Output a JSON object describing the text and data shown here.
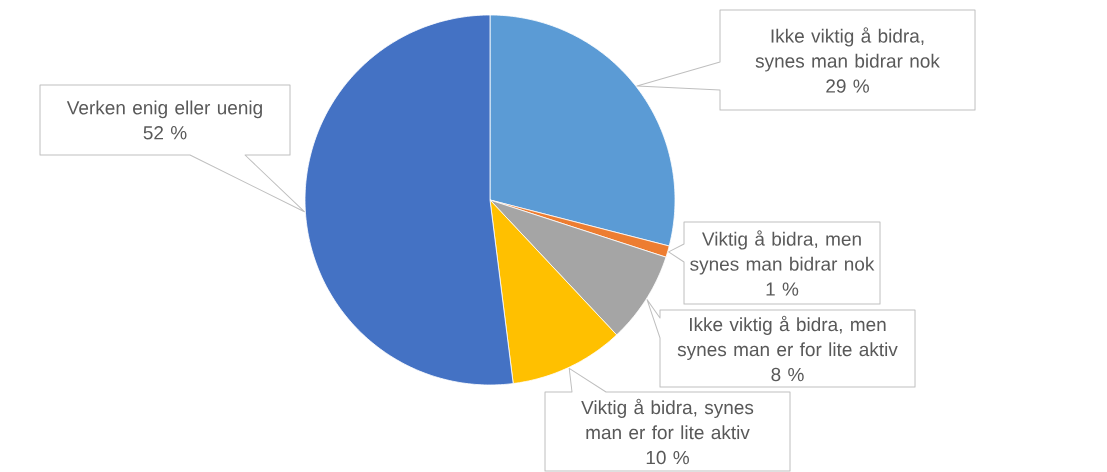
{
  "chart_data": {
    "type": "pie",
    "categories": [
      "Ikke viktig å bidra, synes man bidrar nok",
      "Viktig å bidra, men synes man bidrar nok",
      "Ikke viktig å bidra, men synes man er for lite aktiv",
      "Viktig å bidra, synes man er for lite aktiv",
      "Verken enig eller uenig"
    ],
    "values": [
      29,
      1,
      8,
      10,
      52
    ],
    "colors": [
      "#5b9bd5",
      "#ed7d31",
      "#a5a5a5",
      "#ffc000",
      "#4472c4"
    ],
    "value_labels": [
      "29 %",
      "1 %",
      "8 %",
      "10 %",
      "52 %"
    ]
  }
}
